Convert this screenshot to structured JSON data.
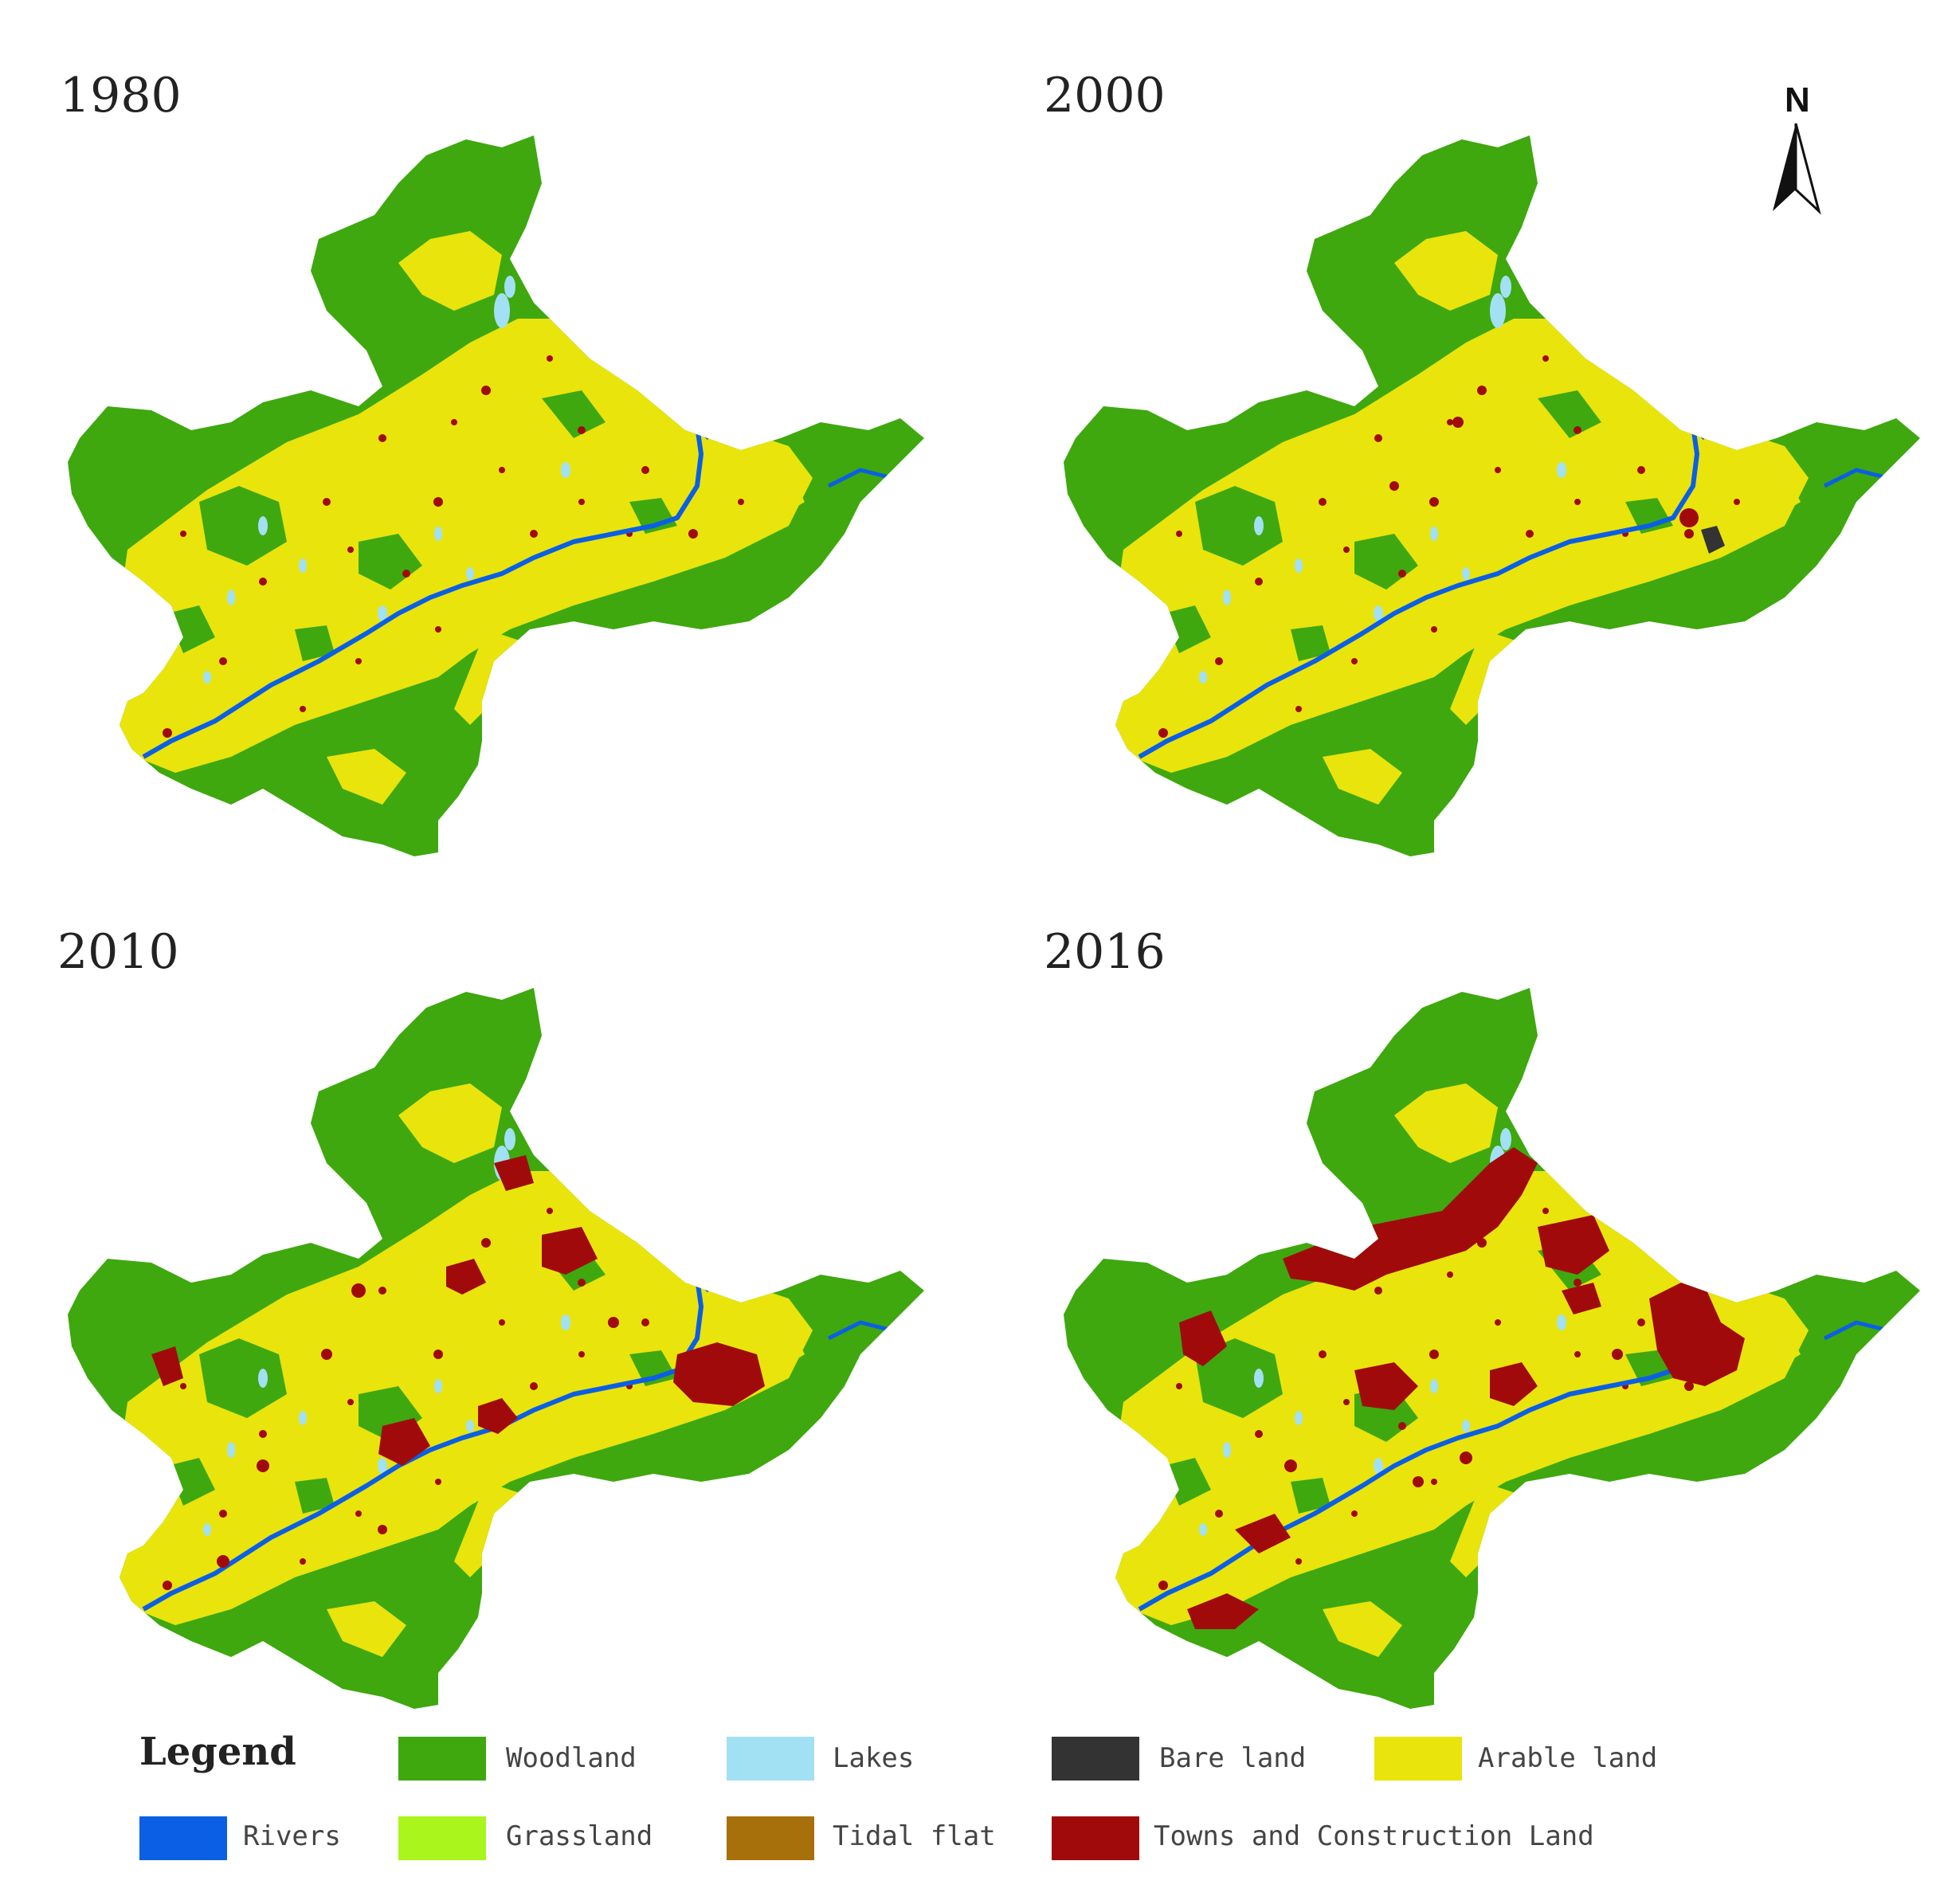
{
  "maps": [
    {
      "year": "1980",
      "urban_level": 0
    },
    {
      "year": "2000",
      "urban_level": 1
    },
    {
      "year": "2010",
      "urban_level": 2
    },
    {
      "year": "2016",
      "urban_level": 3
    }
  ],
  "north_arrow": {
    "label": "N"
  },
  "legend": {
    "title": "Legend",
    "items": [
      {
        "label": "Woodland",
        "color": "#3ea80e"
      },
      {
        "label": "Lakes",
        "color": "#a2e0f3"
      },
      {
        "label": "Bare land",
        "color": "#333333"
      },
      {
        "label": "Arable land",
        "color": "#e9e40c"
      },
      {
        "label": "Rivers",
        "color": "#0b5fe5"
      },
      {
        "label": "Grassland",
        "color": "#aaf51c"
      },
      {
        "label": "Tidal flat",
        "color": "#a8700a"
      },
      {
        "label": "Towns and Construction Land",
        "color": "#a10a0a"
      }
    ]
  }
}
